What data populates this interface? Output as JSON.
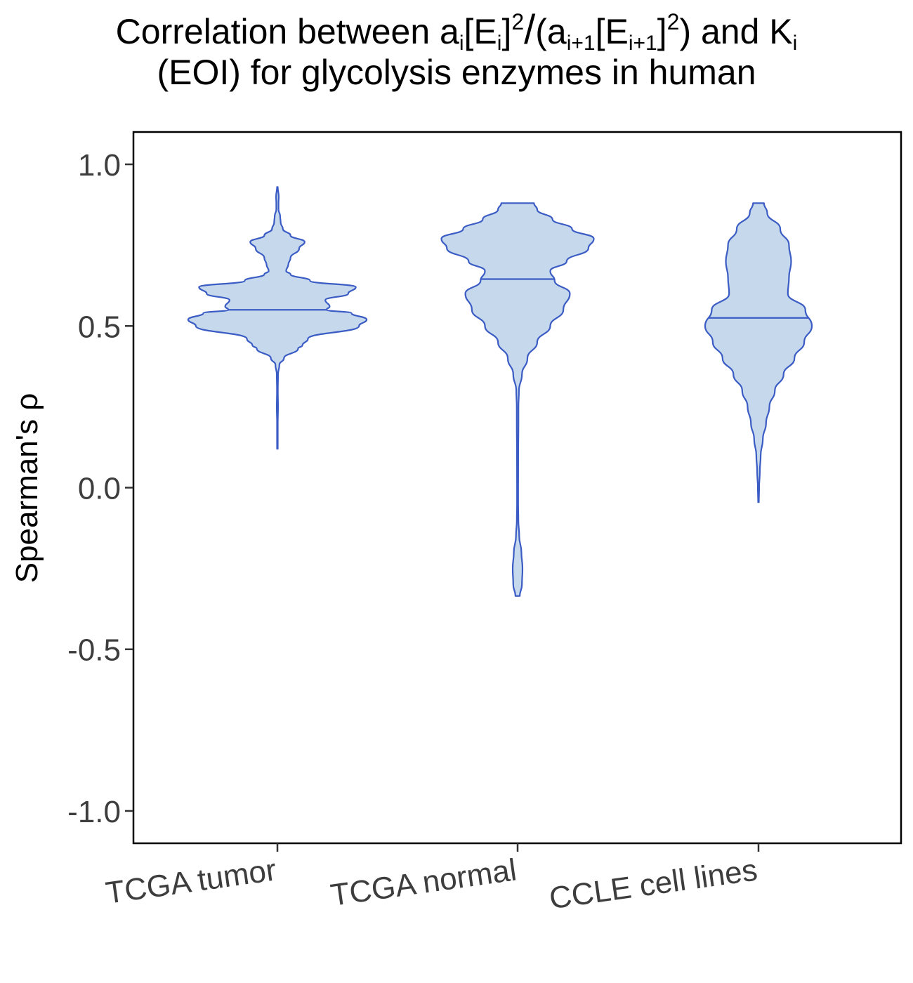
{
  "chart_data": {
    "type": "violin",
    "title": {
      "prefix": "Correlation between a",
      "s1": "i",
      "b1": "[E",
      "s2": "i",
      "b2": "]",
      "p1": "2",
      "slash": "/",
      "b3": "(a",
      "s3": "i+1",
      "b4": "[E",
      "s4": "i+1",
      "b5": "]",
      "p2": "2",
      "b6": ") and K",
      "s5": "i",
      "line2": "(EOI) for glycolysis enzymes in human"
    },
    "ylabel": "Spearman's  ρ",
    "xlabel": "",
    "ylim": [
      -1.1,
      1.1
    ],
    "yticks": [
      -1.0,
      -0.5,
      0.0,
      0.5,
      1.0
    ],
    "ytick_labels": [
      "-1.0",
      "-0.5",
      "0.0",
      "0.5",
      "1.0"
    ],
    "categories": [
      "TCGA tumor",
      "TCGA normal",
      "CCLE cell lines"
    ],
    "fill_color": "#c6d9ec",
    "line_color": "#3b5cc4",
    "series": [
      {
        "category": "TCGA tumor",
        "median": 0.55,
        "profile": [
          [
            0.12,
            0.003
          ],
          [
            0.2,
            0.003
          ],
          [
            0.25,
            0.006
          ],
          [
            0.3,
            0.004
          ],
          [
            0.35,
            0.006
          ],
          [
            0.38,
            0.018
          ],
          [
            0.4,
            0.06
          ],
          [
            0.43,
            0.19
          ],
          [
            0.44,
            0.23
          ],
          [
            0.46,
            0.28
          ],
          [
            0.5,
            0.75
          ],
          [
            0.52,
            0.82
          ],
          [
            0.54,
            0.68
          ],
          [
            0.55,
            0.45
          ],
          [
            0.56,
            0.48
          ],
          [
            0.58,
            0.44
          ],
          [
            0.6,
            0.65
          ],
          [
            0.62,
            0.72
          ],
          [
            0.64,
            0.3
          ],
          [
            0.66,
            0.12
          ],
          [
            0.67,
            0.08
          ],
          [
            0.69,
            0.1
          ],
          [
            0.71,
            0.12
          ],
          [
            0.74,
            0.2
          ],
          [
            0.76,
            0.25
          ],
          [
            0.78,
            0.12
          ],
          [
            0.8,
            0.05
          ],
          [
            0.82,
            0.03
          ],
          [
            0.84,
            0.025
          ],
          [
            0.86,
            0.01
          ],
          [
            0.88,
            0.01
          ],
          [
            0.9,
            0.012
          ],
          [
            0.93,
            0.003
          ]
        ]
      },
      {
        "category": "TCGA normal",
        "median": 0.645,
        "profile": [
          [
            -0.335,
            0.02
          ],
          [
            -0.3,
            0.04
          ],
          [
            -0.25,
            0.045
          ],
          [
            -0.2,
            0.035
          ],
          [
            -0.15,
            0.015
          ],
          [
            -0.1,
            0.007
          ],
          [
            -0.05,
            0.005
          ],
          [
            0.0,
            0.005
          ],
          [
            0.1,
            0.006
          ],
          [
            0.2,
            0.008
          ],
          [
            0.25,
            0.008
          ],
          [
            0.3,
            0.012
          ],
          [
            0.35,
            0.04
          ],
          [
            0.4,
            0.09
          ],
          [
            0.45,
            0.18
          ],
          [
            0.5,
            0.3
          ],
          [
            0.55,
            0.42
          ],
          [
            0.6,
            0.48
          ],
          [
            0.64,
            0.34
          ],
          [
            0.67,
            0.3
          ],
          [
            0.7,
            0.45
          ],
          [
            0.74,
            0.65
          ],
          [
            0.77,
            0.7
          ],
          [
            0.8,
            0.5
          ],
          [
            0.83,
            0.32
          ],
          [
            0.86,
            0.18
          ],
          [
            0.88,
            0.15
          ]
        ]
      },
      {
        "category": "CCLE cell lines",
        "median": 0.525,
        "profile": [
          [
            -0.045,
            0.003
          ],
          [
            0.0,
            0.006
          ],
          [
            0.05,
            0.012
          ],
          [
            0.1,
            0.02
          ],
          [
            0.15,
            0.04
          ],
          [
            0.2,
            0.07
          ],
          [
            0.25,
            0.1
          ],
          [
            0.3,
            0.15
          ],
          [
            0.35,
            0.23
          ],
          [
            0.4,
            0.33
          ],
          [
            0.45,
            0.42
          ],
          [
            0.5,
            0.49
          ],
          [
            0.55,
            0.43
          ],
          [
            0.6,
            0.27
          ],
          [
            0.65,
            0.28
          ],
          [
            0.7,
            0.3
          ],
          [
            0.75,
            0.28
          ],
          [
            0.8,
            0.2
          ],
          [
            0.85,
            0.08
          ],
          [
            0.88,
            0.05
          ]
        ]
      }
    ]
  }
}
